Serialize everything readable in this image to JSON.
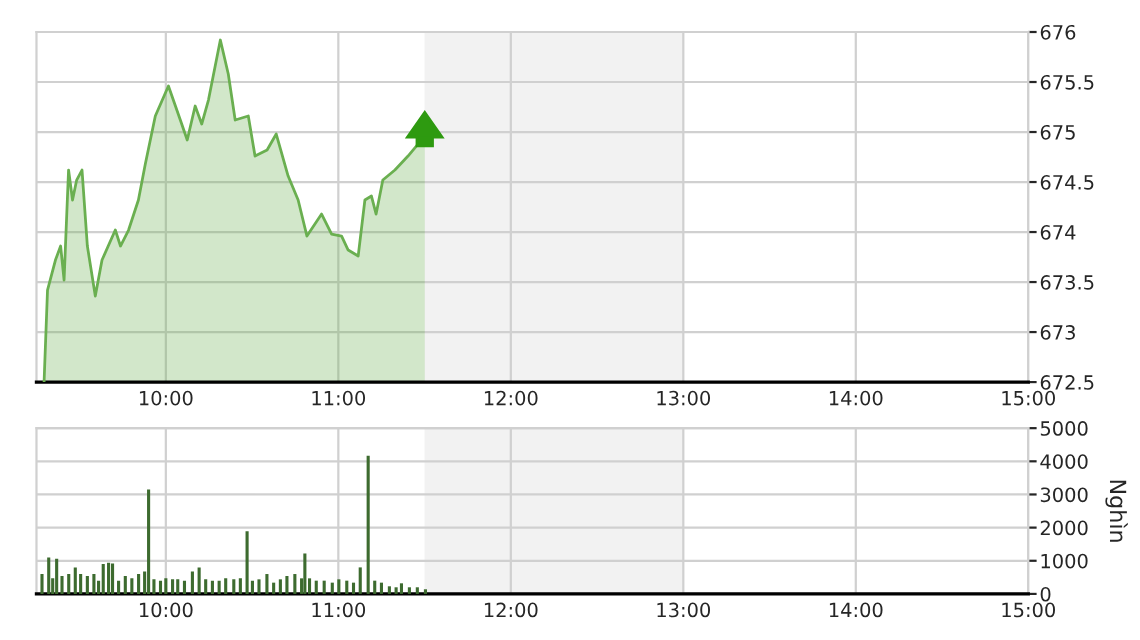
{
  "chart_data": [
    {
      "type": "area",
      "x": [
        9.294,
        9.314,
        9.36,
        9.39,
        9.41,
        9.436,
        9.459,
        9.483,
        9.514,
        9.545,
        9.591,
        9.63,
        9.707,
        9.737,
        9.784,
        9.841,
        9.881,
        9.939,
        10.015,
        10.084,
        10.124,
        10.17,
        10.208,
        10.247,
        10.316,
        10.362,
        10.402,
        10.478,
        10.517,
        10.587,
        10.64,
        10.709,
        10.767,
        10.818,
        10.903,
        10.961,
        11.019,
        11.057,
        11.115,
        11.154,
        11.192,
        11.219,
        11.258,
        11.328,
        11.404,
        11.462,
        11.501
      ],
      "series": [
        {
          "color": "#6aaf50",
          "values": [
            672.5,
            673.42,
            673.72,
            673.86,
            673.52,
            674.62,
            674.32,
            674.52,
            674.62,
            673.86,
            673.36,
            673.72,
            674.02,
            673.86,
            674.02,
            674.32,
            674.68,
            675.16,
            675.46,
            675.12,
            674.92,
            675.26,
            675.08,
            675.32,
            675.92,
            675.58,
            675.12,
            675.16,
            674.76,
            674.82,
            674.98,
            674.56,
            674.32,
            673.96,
            674.18,
            673.98,
            673.96,
            673.82,
            673.76,
            674.32,
            674.36,
            674.18,
            674.52,
            674.62,
            674.76,
            674.88,
            674.88
          ]
        }
      ],
      "xlim": [
        9.25,
        15
      ],
      "xticks": [
        {
          "value": 10,
          "label": "10:00"
        },
        {
          "value": 11,
          "label": "11:00"
        },
        {
          "value": 12,
          "label": "12:00"
        },
        {
          "value": 13,
          "label": "13:00"
        },
        {
          "value": 14,
          "label": "14:00"
        },
        {
          "value": 15,
          "label": "15:00"
        }
      ],
      "ylim": [
        672.5,
        676
      ],
      "yticks": [
        672.5,
        673,
        673.5,
        674,
        674.5,
        675,
        675.5,
        676
      ],
      "bands": [
        {
          "axis": "x",
          "from": 11.5,
          "to": 13,
          "color": "#f2f2f2"
        }
      ],
      "grid": true
    },
    {
      "type": "bar",
      "x": [
        9.282,
        9.321,
        9.344,
        9.367,
        9.398,
        9.437,
        9.475,
        9.506,
        9.545,
        9.583,
        9.61,
        9.637,
        9.668,
        9.691,
        9.726,
        9.765,
        9.803,
        9.842,
        9.877,
        9.9,
        9.931,
        9.969,
        10.0,
        10.039,
        10.069,
        10.108,
        10.154,
        10.193,
        10.231,
        10.27,
        10.309,
        10.347,
        10.394,
        10.432,
        10.471,
        10.502,
        10.54,
        10.586,
        10.625,
        10.664,
        10.702,
        10.748,
        10.787,
        10.806,
        10.833,
        10.872,
        10.918,
        10.965,
        11.003,
        11.049,
        11.088,
        11.127,
        11.173,
        11.211,
        11.25,
        11.296,
        11.335,
        11.366,
        11.412,
        11.458,
        11.505
      ],
      "series": [
        {
          "color": "#3d6b2f",
          "values": [
            600,
            1100,
            470,
            1060,
            540,
            600,
            800,
            600,
            540,
            600,
            400,
            900,
            940,
            920,
            400,
            540,
            470,
            600,
            680,
            3150,
            440,
            400,
            470,
            440,
            440,
            400,
            680,
            800,
            440,
            400,
            400,
            470,
            440,
            470,
            1890,
            400,
            440,
            600,
            340,
            440,
            540,
            600,
            470,
            1220,
            470,
            400,
            400,
            340,
            440,
            400,
            340,
            800,
            4170,
            400,
            340,
            230,
            200,
            320,
            200,
            200,
            140
          ]
        }
      ],
      "ylabel": "Nghìn",
      "xlim": [
        9.25,
        15
      ],
      "xticks": [
        {
          "value": 10,
          "label": "10:00"
        },
        {
          "value": 11,
          "label": "11:00"
        },
        {
          "value": 12,
          "label": "12:00"
        },
        {
          "value": 13,
          "label": "13:00"
        },
        {
          "value": 14,
          "label": "14:00"
        },
        {
          "value": 15,
          "label": "15:00"
        }
      ],
      "ylim": [
        0,
        5000
      ],
      "yticks": [
        0,
        1000,
        2000,
        3000,
        4000,
        5000
      ],
      "bands": [
        {
          "axis": "x",
          "from": 11.5,
          "to": 13,
          "color": "#f2f2f2"
        }
      ],
      "grid": true
    }
  ]
}
